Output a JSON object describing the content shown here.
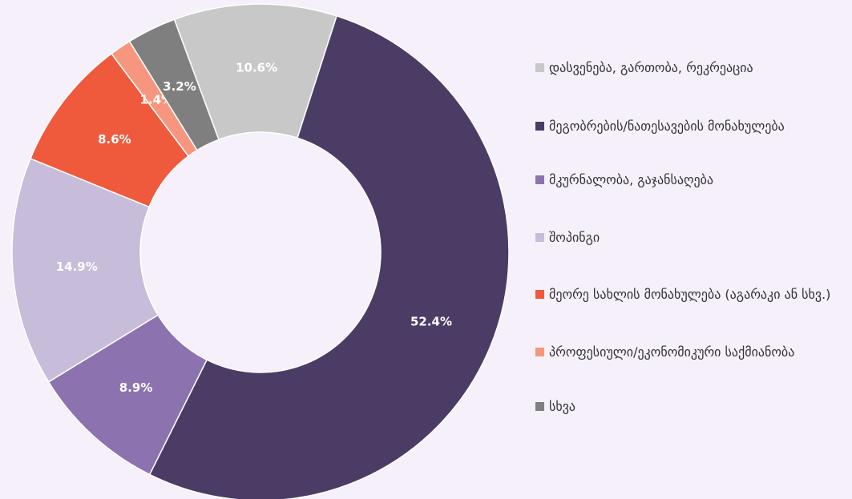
{
  "chart_data": {
    "type": "donut",
    "categories": [
      "დასვენება, გართობა, რეკრეაცია",
      "მეგობრების/ნათესავების მონახულება",
      "მკურნალობა, გაჯანსაღება",
      "შოპინგი",
      "მეორე სახლის მონახულება (აგარაკი ან სხვ.)",
      "პროფესიული/ეკონომიკური საქმიანობა",
      "სხვა"
    ],
    "values": [
      10.6,
      52.4,
      8.9,
      14.9,
      8.6,
      1.4,
      3.2
    ],
    "value_labels": [
      "10.6%",
      "52.4%",
      "8.9%",
      "14.9%",
      "8.6%",
      "1.4%",
      "3.2%"
    ],
    "colors": [
      "#c8c8c8",
      "#4b3c66",
      "#8c73b0",
      "#c7bcd9",
      "#f05a3c",
      "#f7967f",
      "#7f7f7f"
    ],
    "legend": "right"
  }
}
